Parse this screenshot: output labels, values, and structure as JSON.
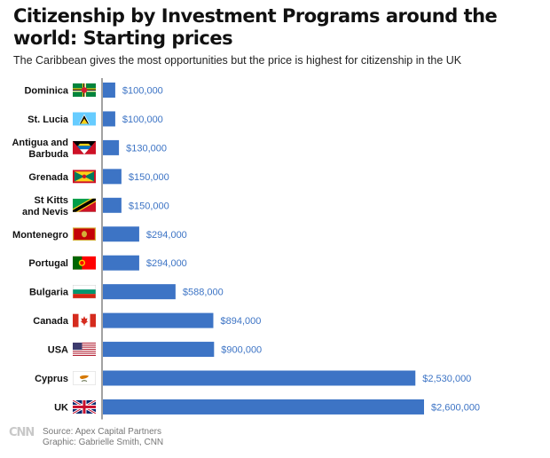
{
  "header": {
    "title": "Citizenship by Investment Programs around the world: Starting prices",
    "subtitle": "The Caribbean gives the most opportunities but the price is highest for citizenship in the UK"
  },
  "chart_data": {
    "type": "bar",
    "orientation": "horizontal",
    "title": "Citizenship by Investment Programs around the world: Starting prices",
    "subtitle": "The Caribbean gives the most opportunities but the price is highest for citizenship in the UK",
    "categories": [
      [
        "Dominica"
      ],
      [
        "St. Lucia"
      ],
      [
        "Antigua and",
        "Barbuda"
      ],
      [
        "Grenada"
      ],
      [
        "St Kitts",
        "and Nevis"
      ],
      [
        "Montenegro"
      ],
      [
        "Portugal"
      ],
      [
        "Bulgaria"
      ],
      [
        "Canada"
      ],
      [
        "USA"
      ],
      [
        "Cyprus"
      ],
      [
        "UK"
      ]
    ],
    "values": [
      100000,
      100000,
      130000,
      150000,
      150000,
      294000,
      294000,
      588000,
      894000,
      900000,
      2530000,
      2600000
    ],
    "value_labels": [
      "$100,000",
      "$100,000",
      "$130,000",
      "$150,000",
      "$150,000",
      "$294,000",
      "$294,000",
      "$588,000",
      "$894,000",
      "$900,000",
      "$2,530,000",
      "$2,600,000"
    ],
    "flag_icons": [
      "dominica-flag-icon",
      "st-lucia-flag-icon",
      "antigua-barbuda-flag-icon",
      "grenada-flag-icon",
      "st-kitts-nevis-flag-icon",
      "montenegro-flag-icon",
      "portugal-flag-icon",
      "bulgaria-flag-icon",
      "canada-flag-icon",
      "usa-flag-icon",
      "cyprus-flag-icon",
      "uk-flag-icon"
    ],
    "xlim": [
      0,
      2600000
    ],
    "grid": false,
    "legend": "none",
    "bar_color": "#3d74c5",
    "label_color": "#3d74c5"
  },
  "footer": {
    "logo": "CNN",
    "source": "Source: Apex Capital Partners",
    "credit": "Graphic: Gabrielle Smith, CNN"
  }
}
